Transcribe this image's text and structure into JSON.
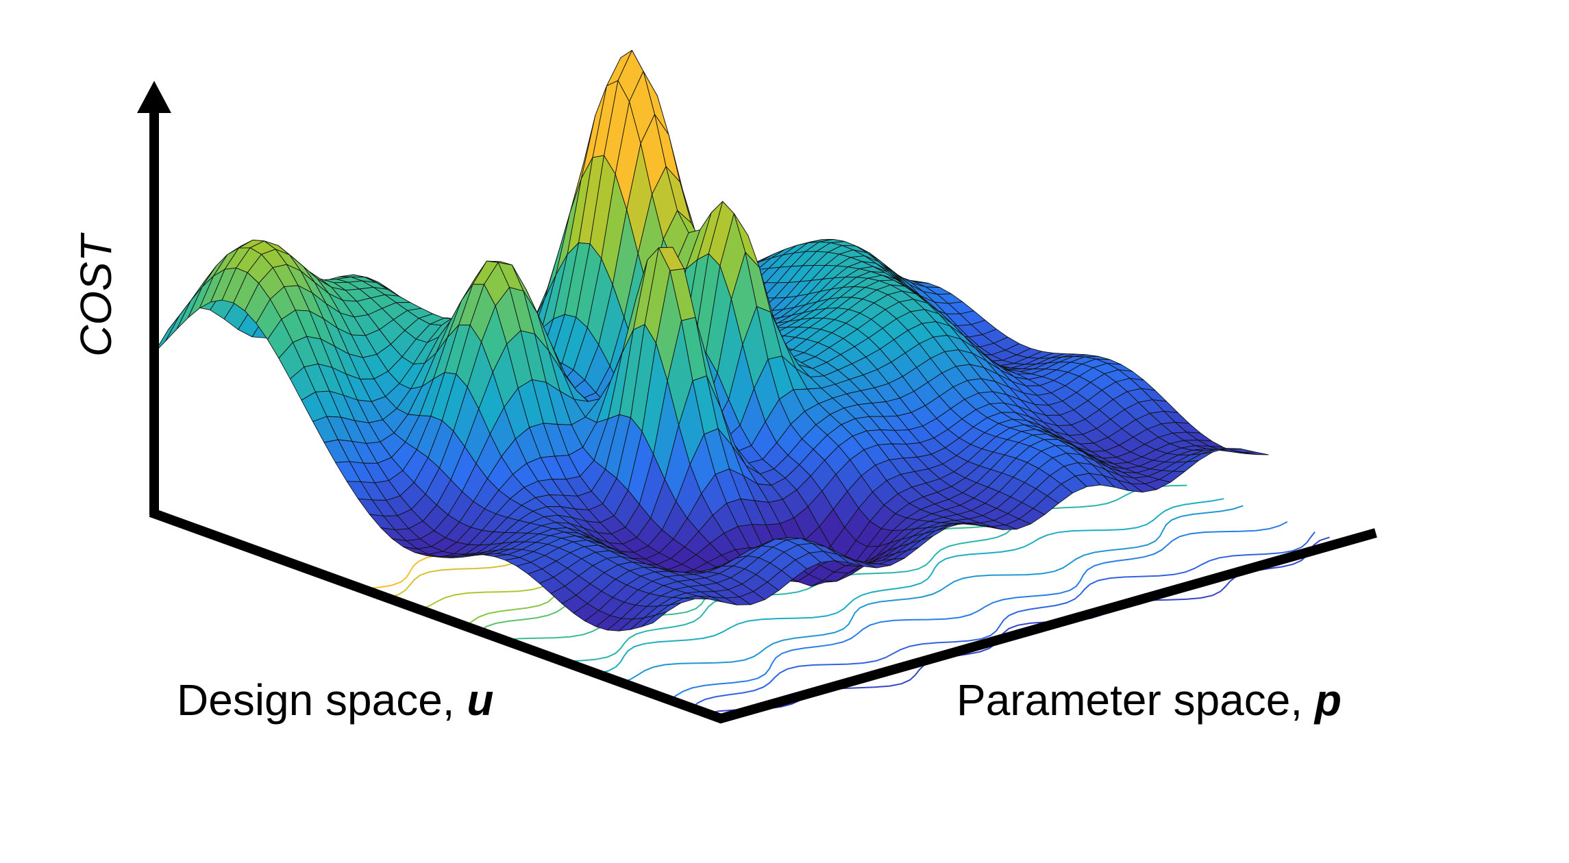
{
  "axes": {
    "z_label": "COST",
    "x_label": {
      "text": "Design space,",
      "symbol": "u"
    },
    "y_label": {
      "text": "Parameter space,",
      "symbol": "p"
    }
  }
}
